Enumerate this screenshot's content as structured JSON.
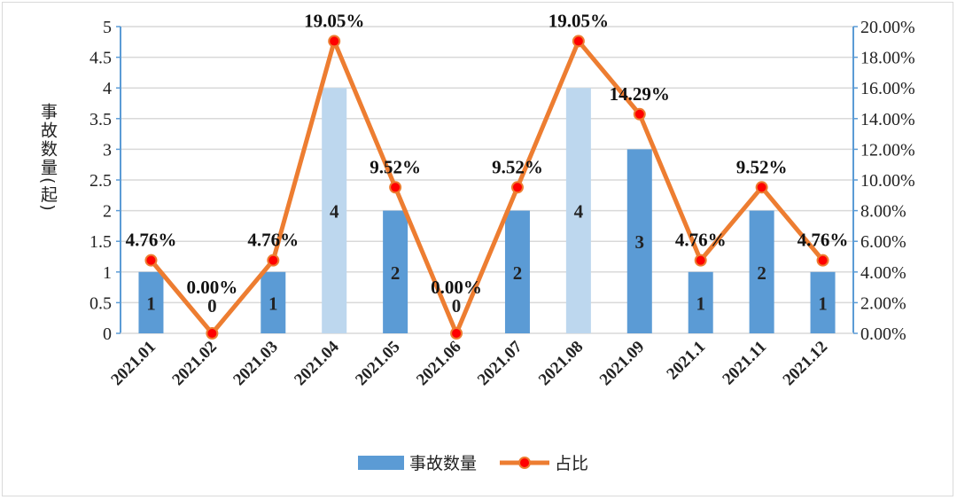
{
  "chart_data": {
    "type": "bar+line",
    "categories": [
      "2021.01",
      "2021.02",
      "2021.03",
      "2021.04",
      "2021.05",
      "2021.06",
      "2021.07",
      "2021.08",
      "2021.09",
      "2021.1",
      "2021.11",
      "2021.12"
    ],
    "series": [
      {
        "name": "事故数量",
        "type": "bar",
        "axis": "left",
        "values": [
          1,
          0,
          1,
          4,
          2,
          0,
          2,
          4,
          3,
          1,
          2,
          1
        ],
        "value_labels": [
          "1",
          "0",
          "1",
          "4",
          "2",
          "0",
          "2",
          "4",
          "3",
          "1",
          "2",
          "1"
        ],
        "color": "#5b9bd5",
        "highlight_color": "#bdd7ee",
        "highlighted": [
          "2021.04",
          "2021.08"
        ]
      },
      {
        "name": "占比",
        "type": "line",
        "axis": "right",
        "values": [
          4.76,
          0,
          4.76,
          19.05,
          9.52,
          0,
          9.52,
          19.05,
          14.29,
          4.76,
          9.52,
          4.76
        ],
        "value_labels": [
          "4.76%",
          "0.00%",
          "4.76%",
          "19.05%",
          "9.52%",
          "0.00%",
          "9.52%",
          "19.05%",
          "14.29%",
          "4.76%",
          "9.52%",
          "4.76%"
        ],
        "color": "#ed7d31",
        "marker_color": "#ff0000"
      }
    ],
    "ylabel": "事故数量(起)",
    "ylim": [
      0,
      5
    ],
    "yticks": [
      "0",
      "0.5",
      "1",
      "1.5",
      "2",
      "2.5",
      "3",
      "3.5",
      "4",
      "4.5",
      "5"
    ],
    "y2lim": [
      0,
      20
    ],
    "y2ticks": [
      "0.00%",
      "2.00%",
      "4.00%",
      "6.00%",
      "8.00%",
      "10.00%",
      "12.00%",
      "14.00%",
      "16.00%",
      "18.00%",
      "20.00%"
    ],
    "grid": true,
    "legend": "bottom",
    "legend_labels": [
      "事故数量",
      "占比"
    ]
  }
}
